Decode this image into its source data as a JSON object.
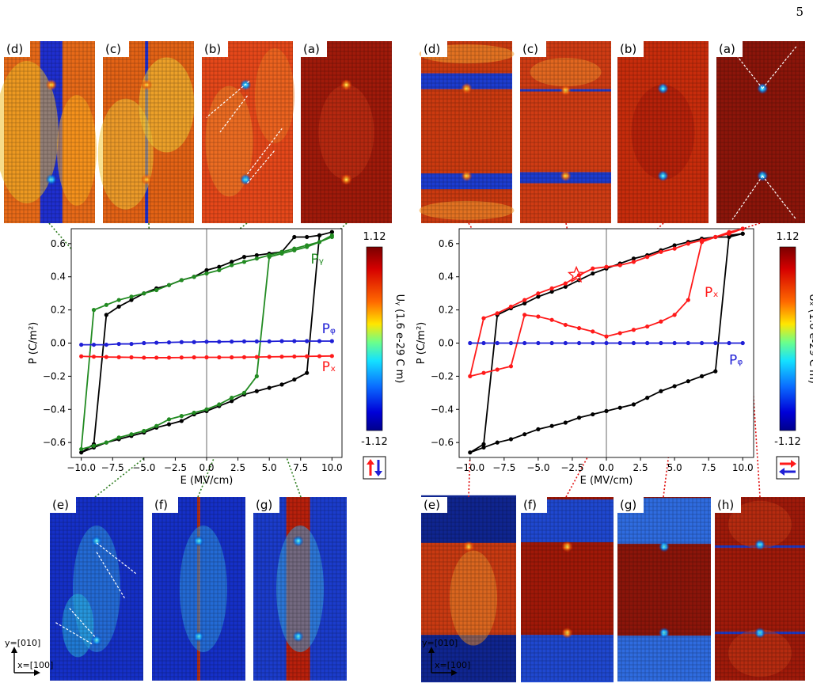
{
  "page_number": "5",
  "colors": {
    "black_loop": "#000000",
    "py_series": "#228B22",
    "pz_series": "#1f1fd6",
    "px_series": "#ff1a1a",
    "connector_left": "#2e7d1f",
    "connector_right": "#e01010",
    "map_high": "#b30000",
    "map_low": "#00008b"
  },
  "left": {
    "top_panels": [
      "(d)",
      "(c)",
      "(b)",
      "(a)"
    ],
    "bottom_panels": [
      "(e)",
      "(f)",
      "(g)"
    ],
    "axes_label": {
      "y": "y=[010]",
      "x": "x=[100]"
    },
    "colorbar": {
      "max": "1.12",
      "min": "-1.12",
      "label": "Uᵧ (1.6 e-29 C m)",
      "arrow_icons": [
        "up-arrow-icon",
        "down-arrow-icon"
      ]
    }
  },
  "right": {
    "top_panels": [
      "(d)",
      "(c)",
      "(b)",
      "(a)"
    ],
    "bottom_panels": [
      "(e)",
      "(f)",
      "(g)",
      "(h)"
    ],
    "axes_label": {
      "y": "y=[010]",
      "x": "x=[100]"
    },
    "colorbar": {
      "max": "1.12",
      "min": "-1.12",
      "label": "Uₓ (1.6 e-29 C m)",
      "arrow_icons": [
        "right-arrow-icon",
        "left-arrow-icon"
      ]
    }
  },
  "chart_data": [
    {
      "type": "line",
      "xlabel": "E (MV/cm)",
      "ylabel": "P (C/m²)",
      "xlim": [
        -10.8,
        10.8
      ],
      "ylim": [
        -0.69,
        0.69
      ],
      "xticks": [
        "−10.0",
        "−7.5",
        "−5.0",
        "−2.5",
        "0.0",
        "2.5",
        "5.0",
        "7.5",
        "10.0"
      ],
      "yticks": [
        "−0.6",
        "−0.4",
        "−0.2",
        "0.0",
        "0.2",
        "0.4",
        "0.6"
      ],
      "annotations": [
        "Pᵧ",
        "Pᵩ",
        "Pₓ"
      ],
      "series": [
        {
          "key": "total",
          "color": "#000000",
          "x": [
            10,
            9,
            8,
            7,
            6,
            5,
            4,
            3,
            2,
            1,
            0,
            -1,
            -2,
            -3,
            -4,
            -5,
            -6,
            -7,
            -8,
            -9,
            -10,
            -9,
            -8,
            -7,
            -6,
            -5,
            -4,
            -3,
            -2,
            -1,
            0,
            1,
            2,
            3,
            4,
            5,
            6,
            7,
            8,
            9,
            10
          ],
          "y": [
            0.67,
            0.65,
            0.64,
            0.64,
            0.55,
            0.54,
            0.53,
            0.52,
            0.49,
            0.46,
            0.44,
            0.4,
            0.38,
            0.35,
            0.33,
            0.3,
            0.26,
            0.22,
            0.17,
            -0.61,
            -0.66,
            -0.63,
            -0.6,
            -0.58,
            -0.56,
            -0.54,
            -0.51,
            -0.49,
            -0.47,
            -0.43,
            -0.41,
            -0.38,
            -0.35,
            -0.31,
            -0.29,
            -0.27,
            -0.25,
            -0.22,
            -0.18,
            0.65,
            0.67
          ]
        },
        {
          "key": "py",
          "color": "#228B22",
          "x": [
            10,
            9,
            8,
            7,
            6,
            5,
            4,
            3,
            2,
            1,
            0,
            -1,
            -2,
            -3,
            -4,
            -5,
            -6,
            -7,
            -8,
            -9,
            -10,
            -9,
            -8,
            -7,
            -6,
            -5,
            -4,
            -3,
            -2,
            -1,
            0,
            1,
            2,
            3,
            4,
            5,
            6,
            7,
            8,
            9,
            10
          ],
          "y": [
            0.64,
            0.61,
            0.59,
            0.57,
            0.55,
            0.53,
            0.51,
            0.49,
            0.47,
            0.44,
            0.42,
            0.4,
            0.38,
            0.35,
            0.32,
            0.3,
            0.28,
            0.26,
            0.23,
            0.2,
            -0.64,
            -0.62,
            -0.6,
            -0.57,
            -0.55,
            -0.53,
            -0.5,
            -0.46,
            -0.44,
            -0.42,
            -0.4,
            -0.37,
            -0.33,
            -0.3,
            -0.2,
            0.52,
            0.54,
            0.56,
            0.58,
            0.61,
            0.65
          ]
        },
        {
          "key": "pz",
          "color": "#1f1fd6",
          "x": [
            -10,
            -9,
            -8,
            -7,
            -6,
            -5,
            -4,
            -3,
            -2,
            -1,
            0,
            1,
            2,
            3,
            4,
            5,
            6,
            7,
            8,
            9,
            10
          ],
          "y": [
            -0.01,
            -0.01,
            -0.01,
            -0.005,
            -0.005,
            0,
            0.002,
            0.004,
            0.006,
            0.006,
            0.008,
            0.008,
            0.009,
            0.01,
            0.01,
            0.01,
            0.012,
            0.012,
            0.012,
            0.012,
            0.012
          ]
        },
        {
          "key": "px",
          "color": "#ff1a1a",
          "x": [
            -10,
            -9,
            -8,
            -7,
            -6,
            -5,
            -4,
            -3,
            -2,
            -1,
            0,
            1,
            2,
            3,
            4,
            5,
            6,
            7,
            8,
            9,
            10
          ],
          "y": [
            -0.08,
            -0.082,
            -0.084,
            -0.085,
            -0.086,
            -0.088,
            -0.088,
            -0.088,
            -0.087,
            -0.086,
            -0.086,
            -0.086,
            -0.086,
            -0.085,
            -0.084,
            -0.083,
            -0.082,
            -0.081,
            -0.08,
            -0.079,
            -0.078
          ]
        }
      ]
    },
    {
      "type": "line",
      "xlabel": "E (MV/cm)",
      "ylabel": "P (C/m²)",
      "xlim": [
        -10.8,
        10.8
      ],
      "ylim": [
        -0.69,
        0.69
      ],
      "xticks": [
        "−10.0",
        "−7.5",
        "−5.0",
        "−2.5",
        "0.0",
        "2.5",
        "5.0",
        "7.5",
        "10.0"
      ],
      "yticks": [
        "−0.6",
        "−0.4",
        "−0.2",
        "0.0",
        "0.2",
        "0.4",
        "0.6"
      ],
      "annotations": [
        "Pₓ",
        "Pᵩ"
      ],
      "series": [
        {
          "key": "total",
          "color": "#000000",
          "x": [
            10,
            9,
            8,
            7,
            6,
            5,
            4,
            3,
            2,
            1,
            0,
            -1,
            -2,
            -3,
            -4,
            -5,
            -6,
            -7,
            -8,
            -9,
            -10,
            -9,
            -8,
            -7,
            -6,
            -5,
            -4,
            -3,
            -2,
            -1,
            0,
            1,
            2,
            3,
            4,
            5,
            6,
            7,
            8,
            9,
            10
          ],
          "y": [
            0.66,
            0.64,
            0.64,
            0.63,
            0.61,
            0.59,
            0.56,
            0.53,
            0.51,
            0.48,
            0.45,
            0.42,
            0.38,
            0.34,
            0.31,
            0.28,
            0.24,
            0.21,
            0.17,
            -0.61,
            -0.66,
            -0.63,
            -0.6,
            -0.58,
            -0.55,
            -0.52,
            -0.5,
            -0.48,
            -0.45,
            -0.43,
            -0.41,
            -0.39,
            -0.37,
            -0.33,
            -0.29,
            -0.26,
            -0.23,
            -0.2,
            -0.17,
            0.65,
            0.66
          ]
        },
        {
          "key": "px",
          "color": "#ff1a1a",
          "x": [
            10,
            9,
            8,
            7,
            6,
            5,
            4,
            3,
            2,
            1,
            0,
            -1,
            -2,
            -3,
            -4,
            -5,
            -6,
            -7,
            -8,
            -9,
            -10,
            -9,
            -8,
            -7,
            -6,
            -5,
            -4,
            -3,
            -2,
            -1,
            0,
            1,
            2,
            3,
            4,
            5,
            6,
            7,
            8,
            9,
            10
          ],
          "y": [
            0.69,
            0.66,
            0.64,
            0.62,
            0.6,
            0.57,
            0.55,
            0.52,
            0.49,
            0.47,
            0.46,
            0.45,
            0.41,
            0.36,
            0.33,
            0.3,
            0.26,
            0.22,
            0.18,
            0.15,
            -0.2,
            -0.18,
            -0.16,
            -0.14,
            0.17,
            0.16,
            0.14,
            0.11,
            0.09,
            0.07,
            0.04,
            0.06,
            0.08,
            0.1,
            0.13,
            0.17,
            0.26,
            0.61,
            0.64,
            0.67,
            0.69
          ]
        },
        {
          "key": "pz",
          "color": "#1f1fd6",
          "x": [
            -10,
            -9,
            -8,
            -7,
            -6,
            -5,
            -4,
            -3,
            -2,
            -1,
            0,
            1,
            2,
            3,
            4,
            5,
            6,
            7,
            8,
            9,
            10
          ],
          "y": [
            0,
            0,
            0,
            0,
            0,
            0,
            0,
            0,
            0,
            0,
            0,
            0,
            0,
            0,
            0,
            0,
            0,
            0,
            0,
            0,
            0
          ]
        }
      ]
    }
  ]
}
